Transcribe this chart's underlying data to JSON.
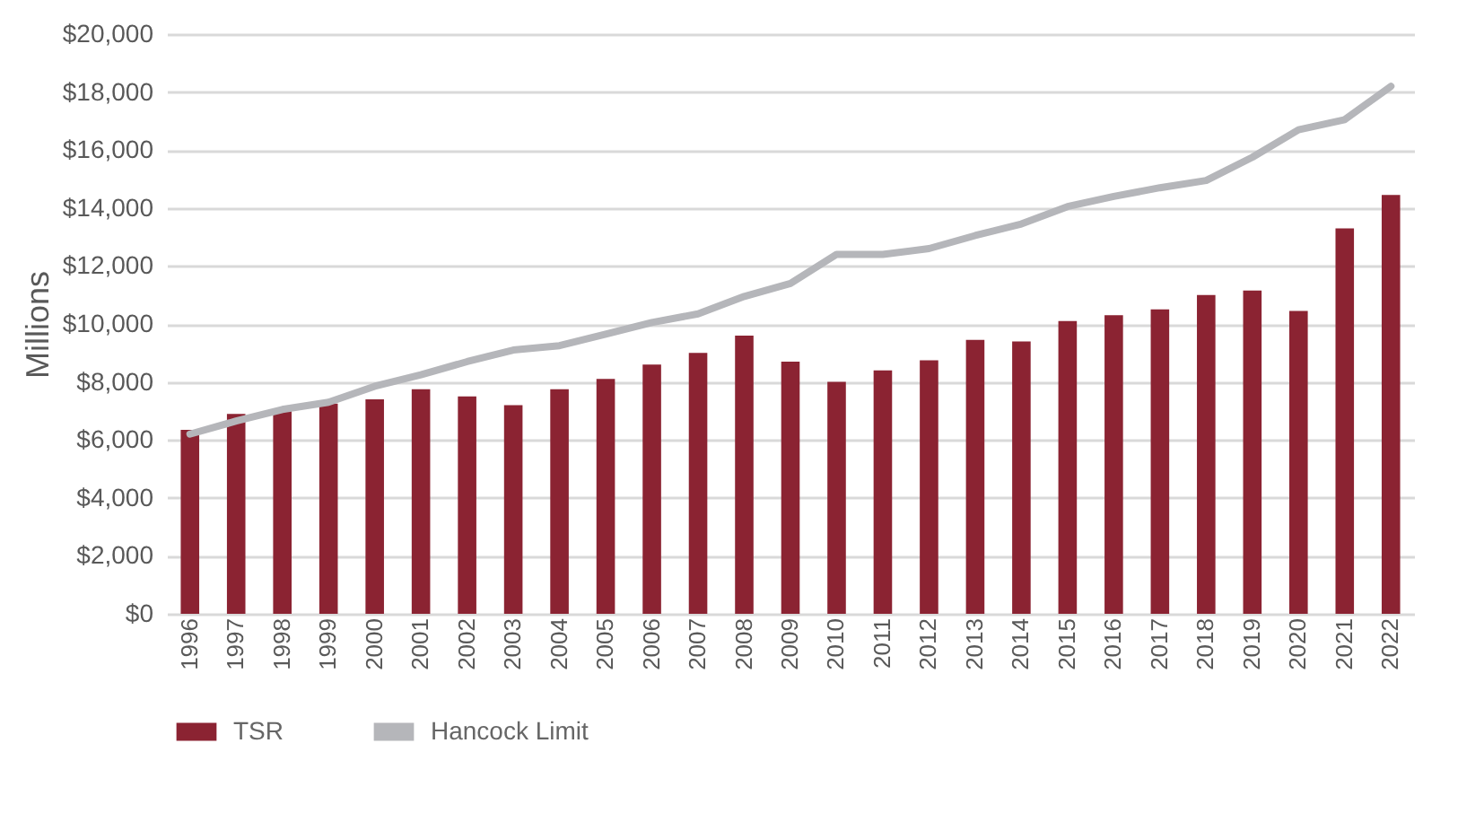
{
  "chart_data": {
    "type": "bar",
    "ylabel": "Millions",
    "categories": [
      "1996",
      "1997",
      "1998",
      "1999",
      "2000",
      "2001",
      "2002",
      "2003",
      "2004",
      "2005",
      "2006",
      "2007",
      "2008",
      "2009",
      "2010",
      "2011",
      "2012",
      "2013",
      "2014",
      "2015",
      "2016",
      "2017",
      "2018",
      "2019",
      "2020",
      "2021",
      "2022"
    ],
    "series": [
      {
        "name": "TSR",
        "color": "#8b2332",
        "values": [
          6350,
          6900,
          7050,
          7250,
          7400,
          7750,
          7500,
          7200,
          7750,
          8100,
          8600,
          9000,
          9600,
          8700,
          8000,
          8400,
          8750,
          9450,
          9400,
          10100,
          10300,
          10500,
          11000,
          11150,
          10450,
          13300,
          14450
        ]
      },
      {
        "name": "Hancock Limit",
        "type": "line",
        "color": "#b5b6ba",
        "values": [
          6200,
          6650,
          7050,
          7300,
          7850,
          8250,
          8700,
          9100,
          9250,
          9650,
          10050,
          10350,
          10950,
          11400,
          12400,
          12400,
          12600,
          13050,
          13450,
          14050,
          14400,
          14700,
          14950,
          15750,
          16700,
          17050,
          18200
        ]
      }
    ],
    "ylim": [
      0,
      20000
    ],
    "yticks": [
      {
        "value": 0,
        "label": "$0"
      },
      {
        "value": 2000,
        "label": "$2,000"
      },
      {
        "value": 4000,
        "label": "$4,000"
      },
      {
        "value": 6000,
        "label": "$6,000"
      },
      {
        "value": 8000,
        "label": "$8,000"
      },
      {
        "value": 10000,
        "label": "$10,000"
      },
      {
        "value": 12000,
        "label": "$12,000"
      },
      {
        "value": 14000,
        "label": "$14,000"
      },
      {
        "value": 16000,
        "label": "$16,000"
      },
      {
        "value": 18000,
        "label": "$18,000"
      },
      {
        "value": 20000,
        "label": "$20,000"
      }
    ],
    "grid": "y",
    "legend": "bottom"
  }
}
